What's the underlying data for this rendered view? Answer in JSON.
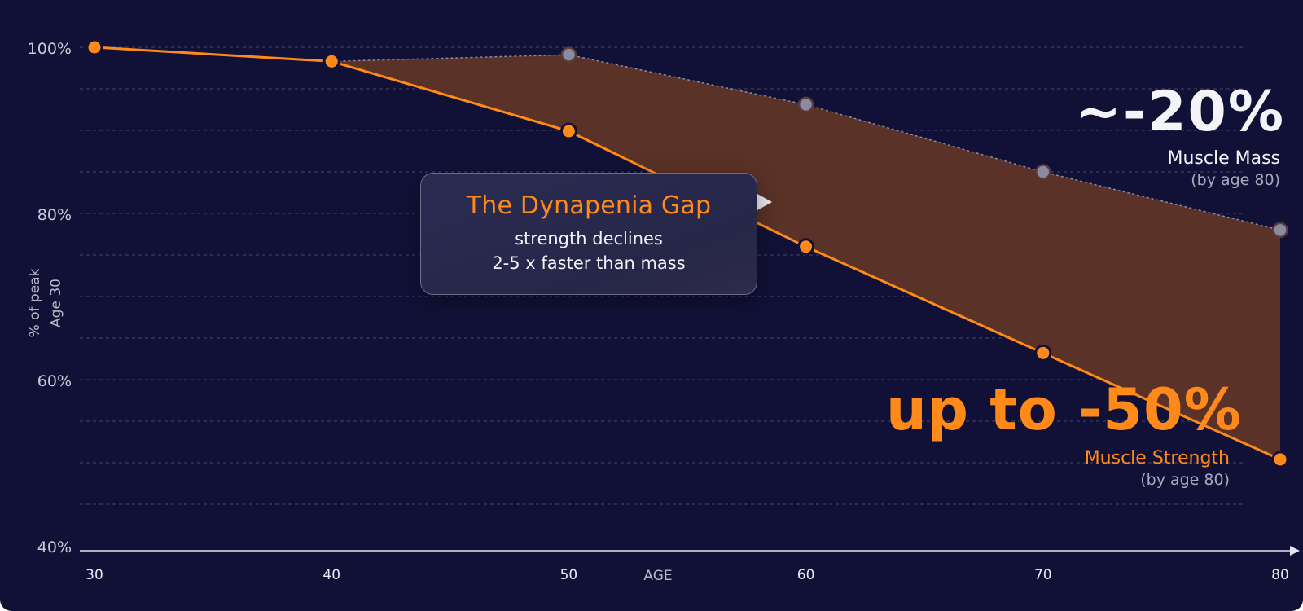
{
  "chart_data": {
    "type": "line",
    "x": [
      30,
      40,
      50,
      60,
      70,
      80
    ],
    "xlim": [
      30,
      80
    ],
    "ylim": [
      40,
      100
    ],
    "xlabel": "AGE",
    "ylabel_lines": [
      "% of peak",
      "Age 30"
    ],
    "ytick_labels": [
      "100%",
      "80%",
      "60%",
      "40%"
    ],
    "ytick_values": [
      100,
      80,
      60,
      40
    ],
    "xtick_labels": [
      "30",
      "40",
      "50",
      "60",
      "70",
      "80"
    ],
    "grid": true,
    "series": [
      {
        "name": "Muscle Mass",
        "values": [
          100,
          98.3,
          99.1,
          93.1,
          85.0,
          78.0
        ],
        "color": "#8a8aa0"
      },
      {
        "name": "Muscle Strength",
        "values": [
          100,
          98.3,
          89.9,
          76.0,
          63.2,
          50.4
        ],
        "color": "#ff8a1a"
      }
    ],
    "gap_fill_color": "#5a3227"
  },
  "annotations": {
    "tooltip_title": "The Dynapenia Gap",
    "tooltip_line1": "strength declines",
    "tooltip_line2": "2-5 x faster than mass",
    "mass_big": "~-20%",
    "mass_label": "Muscle Mass",
    "mass_note": "(by age 80)",
    "strength_big": "up to -50%",
    "strength_label": "Muscle Strength",
    "strength_note": "(by age 80)"
  },
  "colors": {
    "background": "#111137",
    "accent_orange": "#ff8a1a",
    "mass_gray": "#8a8aa0"
  }
}
